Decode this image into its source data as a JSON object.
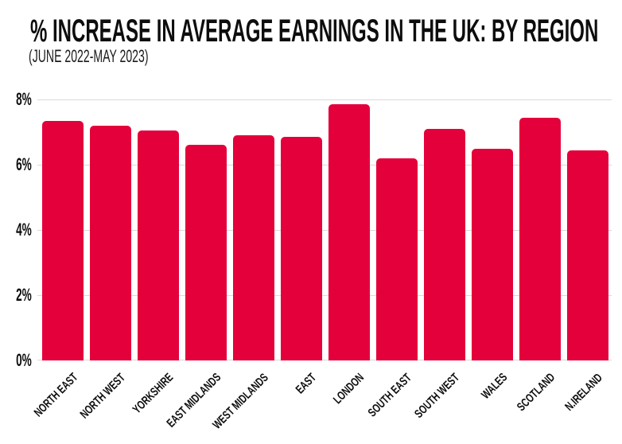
{
  "colors": {
    "bar": "#e4003b",
    "gridline": "#d9d9d9",
    "text": "#111111",
    "background": "#ffffff"
  },
  "chart_data": {
    "type": "bar",
    "title": "% INCREASE IN AVERAGE EARNINGS IN THE UK: BY REGION",
    "subtitle": "(JUNE 2022-MAY 2023)",
    "categories": [
      "NORTH EAST",
      "NORTH WEST",
      "YORKSHIRE",
      "EAST MIDLANDS",
      "WEST MIDLANDS",
      "EAST",
      "LONDON",
      "SOUTH EAST",
      "SOUTH WEST",
      "WALES",
      "SCOTLAND",
      "N.IRELAND"
    ],
    "values": [
      7.35,
      7.2,
      7.05,
      6.6,
      6.9,
      6.85,
      7.85,
      6.2,
      7.1,
      6.5,
      7.45,
      6.45
    ],
    "xlabel": "",
    "ylabel": "",
    "ylim": [
      0,
      8
    ],
    "yticks": [
      "0%",
      "2%",
      "4%",
      "6%",
      "8%"
    ],
    "grid": true,
    "legend": false,
    "bar_color": "#e4003b"
  }
}
